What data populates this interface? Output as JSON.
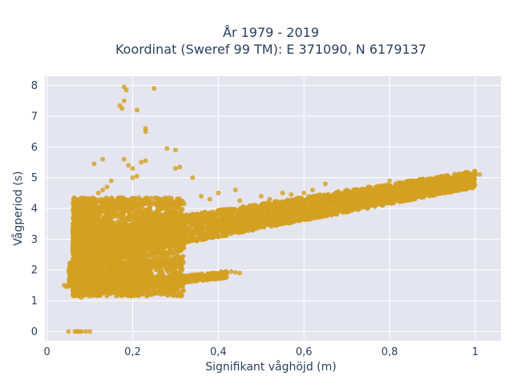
{
  "chart_data": {
    "type": "scatter",
    "title_line1": "År 1979 - 2019",
    "title_line2": "Koordinat (Sweref 99 TM): E 371090, N 6179137",
    "xlabel": "Signifikant våghöjd (m)",
    "ylabel": "Vågperiod (s)",
    "xlim": [
      -0.005,
      1.06
    ],
    "ylim": [
      -0.3,
      8.3
    ],
    "x_ticks": [
      {
        "value": 0,
        "label": "0"
      },
      {
        "value": 0.2,
        "label": "0,2"
      },
      {
        "value": 0.4,
        "label": "0,4"
      },
      {
        "value": 0.6,
        "label": "0,6"
      },
      {
        "value": 0.8,
        "label": "0,8"
      },
      {
        "value": 1.0,
        "label": "1"
      }
    ],
    "y_ticks": [
      {
        "value": 0,
        "label": "0"
      },
      {
        "value": 1,
        "label": "1"
      },
      {
        "value": 2,
        "label": "2"
      },
      {
        "value": 3,
        "label": "3"
      },
      {
        "value": 4,
        "label": "4"
      },
      {
        "value": 5,
        "label": "5"
      },
      {
        "value": 6,
        "label": "6"
      },
      {
        "value": 7,
        "label": "7"
      },
      {
        "value": 8,
        "label": "8"
      }
    ],
    "grid": true,
    "marker_color": "#d4a021",
    "background_color": "#e5e5f0",
    "series": [
      {
        "values": [
          [
            0.05,
            0.0
          ],
          [
            0.065,
            0.0
          ],
          [
            0.07,
            0.0
          ],
          [
            0.075,
            0.0
          ],
          [
            0.08,
            0.0
          ],
          [
            0.09,
            0.0
          ],
          [
            0.1,
            0.0
          ],
          [
            0.04,
            1.5
          ],
          [
            0.045,
            1.45
          ],
          [
            0.05,
            1.55
          ],
          [
            0.055,
            1.5
          ],
          [
            0.06,
            1.5
          ],
          [
            0.065,
            1.6
          ],
          [
            0.07,
            3.9
          ],
          [
            0.075,
            3.6
          ],
          [
            0.09,
            3.65
          ],
          [
            0.1,
            3.7
          ],
          [
            0.08,
            1.1
          ],
          [
            0.09,
            1.2
          ],
          [
            0.12,
            4.5
          ],
          [
            0.13,
            4.6
          ],
          [
            0.11,
            5.45
          ],
          [
            0.13,
            5.6
          ],
          [
            0.14,
            4.7
          ],
          [
            0.15,
            4.9
          ],
          [
            0.17,
            7.35
          ],
          [
            0.18,
            7.5
          ],
          [
            0.175,
            7.25
          ],
          [
            0.18,
            7.95
          ],
          [
            0.185,
            7.85
          ],
          [
            0.21,
            7.2
          ],
          [
            0.25,
            7.9
          ],
          [
            0.23,
            6.5
          ],
          [
            0.23,
            6.6
          ],
          [
            0.28,
            5.95
          ],
          [
            0.3,
            5.9
          ],
          [
            0.3,
            5.3
          ],
          [
            0.31,
            5.35
          ],
          [
            0.34,
            5.0
          ],
          [
            0.18,
            5.6
          ],
          [
            0.2,
            5.3
          ],
          [
            0.19,
            5.4
          ],
          [
            0.22,
            5.5
          ],
          [
            0.23,
            5.55
          ],
          [
            0.2,
            5.0
          ],
          [
            0.21,
            5.05
          ],
          [
            0.36,
            4.4
          ],
          [
            0.38,
            4.3
          ],
          [
            0.4,
            4.5
          ],
          [
            0.44,
            4.6
          ],
          [
            0.45,
            4.25
          ],
          [
            0.5,
            4.4
          ],
          [
            0.52,
            4.3
          ],
          [
            0.55,
            4.5
          ],
          [
            0.57,
            4.45
          ],
          [
            0.6,
            4.5
          ],
          [
            0.62,
            4.6
          ],
          [
            0.65,
            4.8
          ],
          [
            0.68,
            4.55
          ],
          [
            0.7,
            4.6
          ],
          [
            0.75,
            4.7
          ],
          [
            0.8,
            4.9
          ],
          [
            0.85,
            4.75
          ],
          [
            0.88,
            4.8
          ],
          [
            0.9,
            4.95
          ],
          [
            0.95,
            5.0
          ],
          [
            0.97,
            5.0
          ],
          [
            0.99,
            5.05
          ],
          [
            1.0,
            5.1
          ],
          [
            1.01,
            5.1
          ],
          [
            0.98,
            5.0
          ],
          [
            0.96,
            4.9
          ],
          [
            0.93,
            4.85
          ],
          [
            0.92,
            4.8
          ],
          [
            0.12,
            2.1
          ],
          [
            0.14,
            2.2
          ],
          [
            0.16,
            2.3
          ],
          [
            0.18,
            2.2
          ],
          [
            0.2,
            2.0
          ],
          [
            0.22,
            2.1
          ],
          [
            0.24,
            2.0
          ],
          [
            0.12,
            1.2
          ],
          [
            0.14,
            1.3
          ],
          [
            0.16,
            1.25
          ],
          [
            0.18,
            1.35
          ],
          [
            0.2,
            1.4
          ],
          [
            0.22,
            1.45
          ],
          [
            0.24,
            1.5
          ],
          [
            0.26,
            1.55
          ],
          [
            0.28,
            1.6
          ],
          [
            0.3,
            1.65
          ],
          [
            0.32,
            1.7
          ],
          [
            0.34,
            1.72
          ],
          [
            0.36,
            1.75
          ],
          [
            0.38,
            1.8
          ],
          [
            0.4,
            1.85
          ],
          [
            0.42,
            1.9
          ],
          [
            0.43,
            1.95
          ],
          [
            0.44,
            1.92
          ],
          [
            0.45,
            1.9
          ],
          [
            0.1,
            2.5
          ],
          [
            0.1,
            3.0
          ],
          [
            0.12,
            3.5
          ],
          [
            0.14,
            3.8
          ],
          [
            0.16,
            4.0
          ],
          [
            0.18,
            4.2
          ],
          [
            0.2,
            4.3
          ],
          [
            0.22,
            4.1
          ],
          [
            0.24,
            4.0
          ],
          [
            0.26,
            3.8
          ],
          [
            0.28,
            3.7
          ],
          [
            0.3,
            3.6
          ],
          [
            0.32,
            3.5
          ],
          [
            0.34,
            3.5
          ],
          [
            0.36,
            3.4
          ],
          [
            0.38,
            3.5
          ],
          [
            0.4,
            3.6
          ],
          [
            0.45,
            3.7
          ],
          [
            0.5,
            3.8
          ],
          [
            0.55,
            3.9
          ],
          [
            0.6,
            4.0
          ],
          [
            0.65,
            4.1
          ],
          [
            0.7,
            4.2
          ],
          [
            0.75,
            4.3
          ],
          [
            0.8,
            4.4
          ],
          [
            0.85,
            4.5
          ],
          [
            0.9,
            4.6
          ],
          [
            0.95,
            4.75
          ]
        ]
      }
    ]
  }
}
